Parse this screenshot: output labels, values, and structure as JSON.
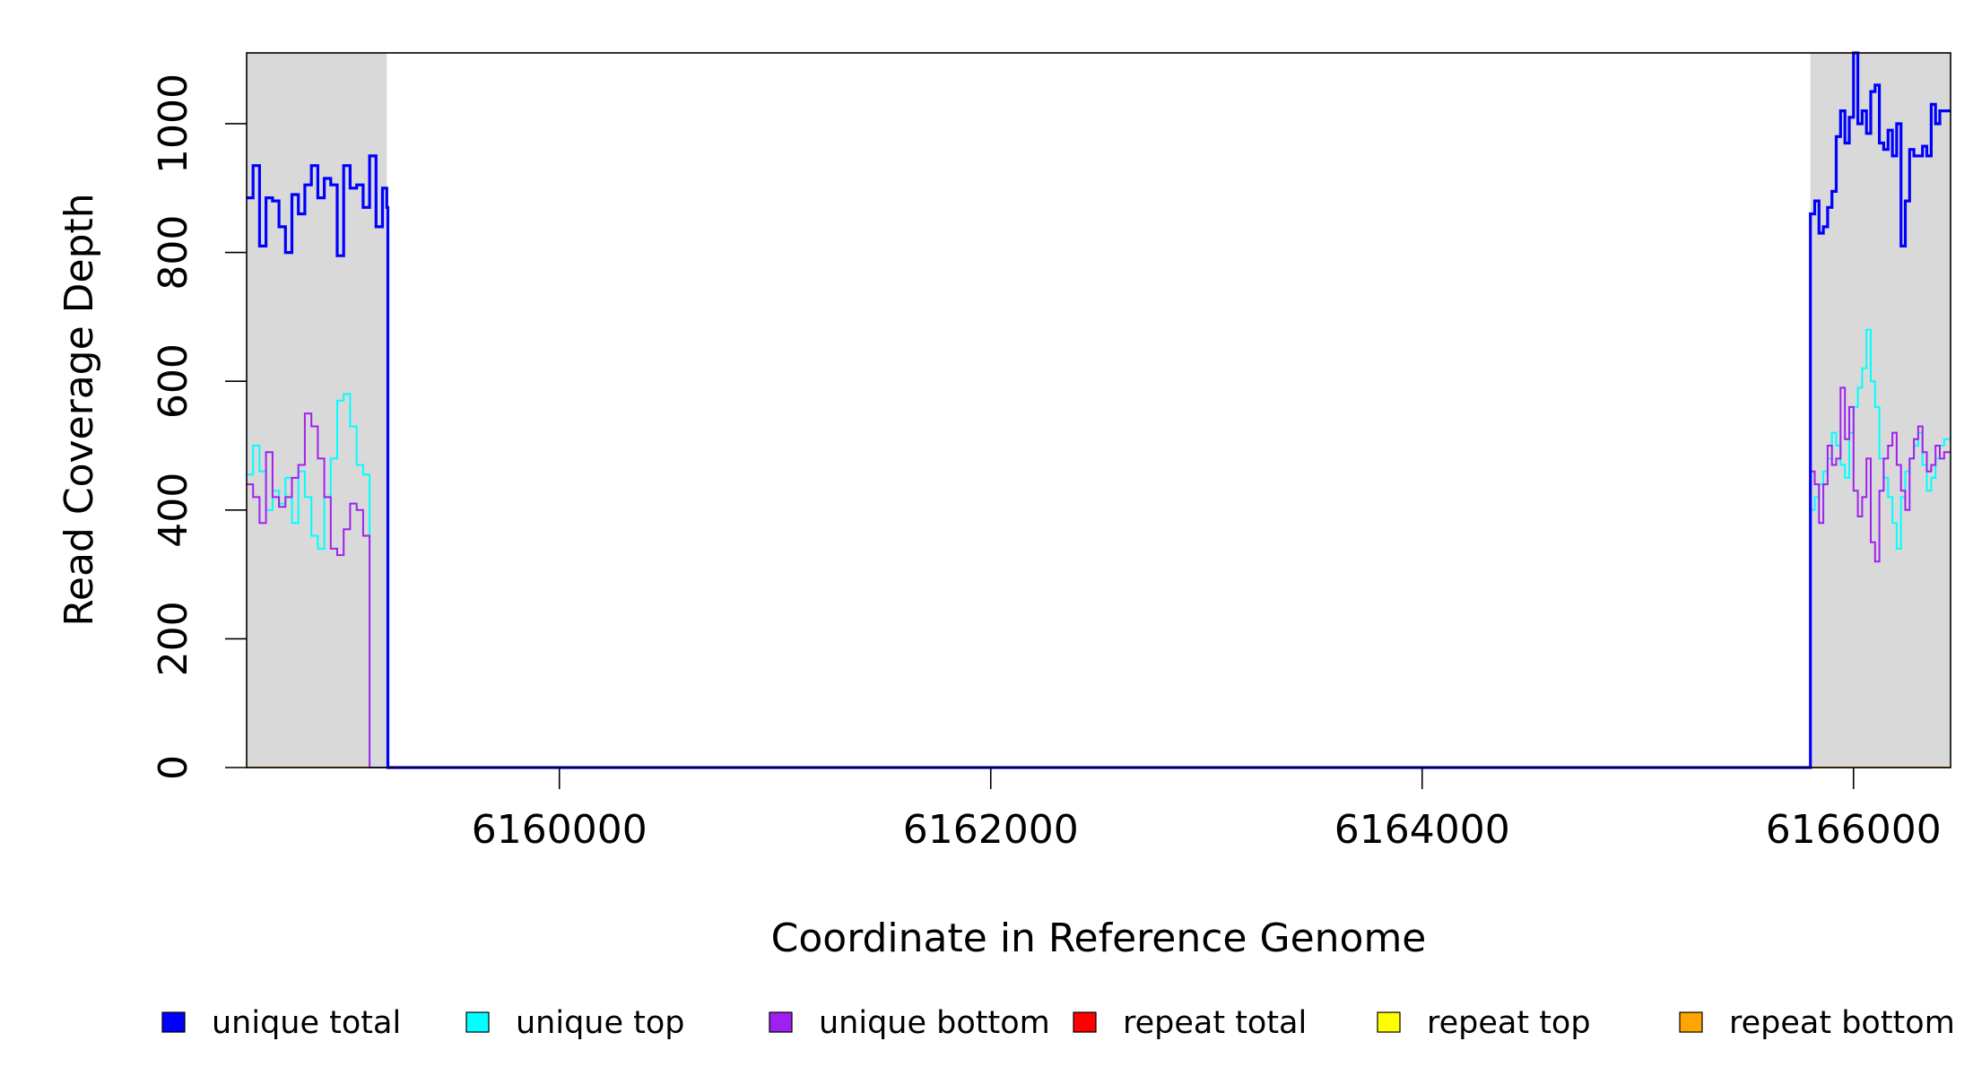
{
  "chart_data": {
    "type": "line",
    "title": "",
    "xlabel": "Coordinate in Reference Genome",
    "ylabel": "Read Coverage Depth",
    "xlim": [
      6158550,
      6166450
    ],
    "ylim": [
      0,
      1110
    ],
    "xticks": [
      6160000,
      6162000,
      6164000,
      6166000
    ],
    "xtick_labels": [
      "6160000",
      "6162000",
      "6164000",
      "6166000"
    ],
    "yticks": [
      0,
      200,
      400,
      600,
      800,
      1000
    ],
    "ytick_labels": [
      "0",
      "200",
      "400",
      "600",
      "800",
      "1000"
    ],
    "shaded_regions": [
      [
        6158550,
        6159200
      ],
      [
        6165800,
        6166450
      ]
    ],
    "shade_color": "#d9d9d9",
    "legend_position": "bottom",
    "series": [
      {
        "name": "unique total",
        "color": "#0000ff",
        "x": [
          6158550,
          6158580,
          6158610,
          6158640,
          6158670,
          6158700,
          6158730,
          6158760,
          6158790,
          6158820,
          6158850,
          6158880,
          6158910,
          6158940,
          6158970,
          6159000,
          6159030,
          6159060,
          6159090,
          6159120,
          6159150,
          6159180,
          6159200,
          6159205,
          6165795,
          6165800,
          6165820,
          6165840,
          6165860,
          6165880,
          6165900,
          6165920,
          6165940,
          6165960,
          6165980,
          6166000,
          6166020,
          6166040,
          6166060,
          6166080,
          6166100,
          6166120,
          6166140,
          6166160,
          6166180,
          6166200,
          6166220,
          6166240,
          6166260,
          6166280,
          6166300,
          6166320,
          6166340,
          6166360,
          6166380,
          6166400,
          6166420,
          6166450
        ],
        "y": [
          885,
          935,
          810,
          885,
          880,
          840,
          800,
          890,
          860,
          905,
          935,
          885,
          915,
          905,
          795,
          935,
          900,
          905,
          870,
          950,
          840,
          900,
          870,
          0,
          0,
          860,
          880,
          830,
          840,
          870,
          895,
          980,
          1020,
          970,
          1010,
          1110,
          1000,
          1020,
          985,
          1050,
          1060,
          970,
          960,
          990,
          950,
          1000,
          810,
          880,
          960,
          950,
          950,
          965,
          950,
          1030,
          1000,
          1020,
          1020,
          1020
        ]
      },
      {
        "name": "unique top",
        "color": "#00ffff",
        "x": [
          6158550,
          6158580,
          6158610,
          6158640,
          6158670,
          6158700,
          6158730,
          6158760,
          6158790,
          6158820,
          6158850,
          6158880,
          6158910,
          6158940,
          6158970,
          6159000,
          6159030,
          6159060,
          6159090,
          6159120,
          6159150,
          6159180,
          6159200,
          6159205,
          6165795,
          6165800,
          6165820,
          6165840,
          6165860,
          6165880,
          6165900,
          6165920,
          6165940,
          6165960,
          6165980,
          6166000,
          6166020,
          6166040,
          6166060,
          6166080,
          6166100,
          6166120,
          6166140,
          6166160,
          6166180,
          6166200,
          6166220,
          6166240,
          6166260,
          6166280,
          6166300,
          6166320,
          6166340,
          6166360,
          6166380,
          6166400,
          6166420,
          6166450
        ],
        "y": [
          455,
          500,
          460,
          400,
          430,
          410,
          450,
          380,
          460,
          420,
          360,
          340,
          420,
          480,
          570,
          580,
          530,
          470,
          455,
          0,
          0,
          0,
          0,
          0,
          0,
          400,
          420,
          440,
          460,
          480,
          520,
          500,
          470,
          450,
          520,
          560,
          590,
          620,
          680,
          600,
          560,
          480,
          450,
          420,
          380,
          340,
          420,
          460,
          480,
          500,
          520,
          470,
          430,
          450,
          480,
          500,
          510,
          510
        ]
      },
      {
        "name": "unique bottom",
        "color": "#a020f0",
        "x": [
          6158550,
          6158580,
          6158610,
          6158640,
          6158670,
          6158700,
          6158730,
          6158760,
          6158790,
          6158820,
          6158850,
          6158880,
          6158910,
          6158940,
          6158970,
          6159000,
          6159030,
          6159060,
          6159090,
          6159120,
          6159150,
          6159180,
          6159200,
          6159205,
          6165795,
          6165800,
          6165820,
          6165840,
          6165860,
          6165880,
          6165900,
          6165920,
          6165940,
          6165960,
          6165980,
          6166000,
          6166020,
          6166040,
          6166060,
          6166080,
          6166100,
          6166120,
          6166140,
          6166160,
          6166180,
          6166200,
          6166220,
          6166240,
          6166260,
          6166280,
          6166300,
          6166320,
          6166340,
          6166360,
          6166380,
          6166400,
          6166420,
          6166450
        ],
        "y": [
          440,
          420,
          380,
          490,
          420,
          405,
          420,
          450,
          470,
          550,
          530,
          480,
          420,
          340,
          330,
          370,
          410,
          400,
          360,
          0,
          0,
          0,
          0,
          0,
          0,
          460,
          440,
          380,
          440,
          500,
          470,
          480,
          590,
          510,
          560,
          430,
          390,
          420,
          480,
          350,
          320,
          430,
          480,
          500,
          520,
          470,
          430,
          400,
          480,
          510,
          530,
          490,
          460,
          470,
          500,
          480,
          490,
          490
        ]
      },
      {
        "name": "repeat total",
        "color": "#ff0000",
        "x": [
          6158550,
          6166450
        ],
        "y": [
          0,
          0
        ]
      },
      {
        "name": "repeat top",
        "color": "#ffff00",
        "x": [
          6158550,
          6166450
        ],
        "y": [
          0,
          0
        ]
      },
      {
        "name": "repeat bottom",
        "color": "#ffa500",
        "x": [
          6158550,
          6166450
        ],
        "y": [
          0,
          0
        ]
      }
    ]
  }
}
